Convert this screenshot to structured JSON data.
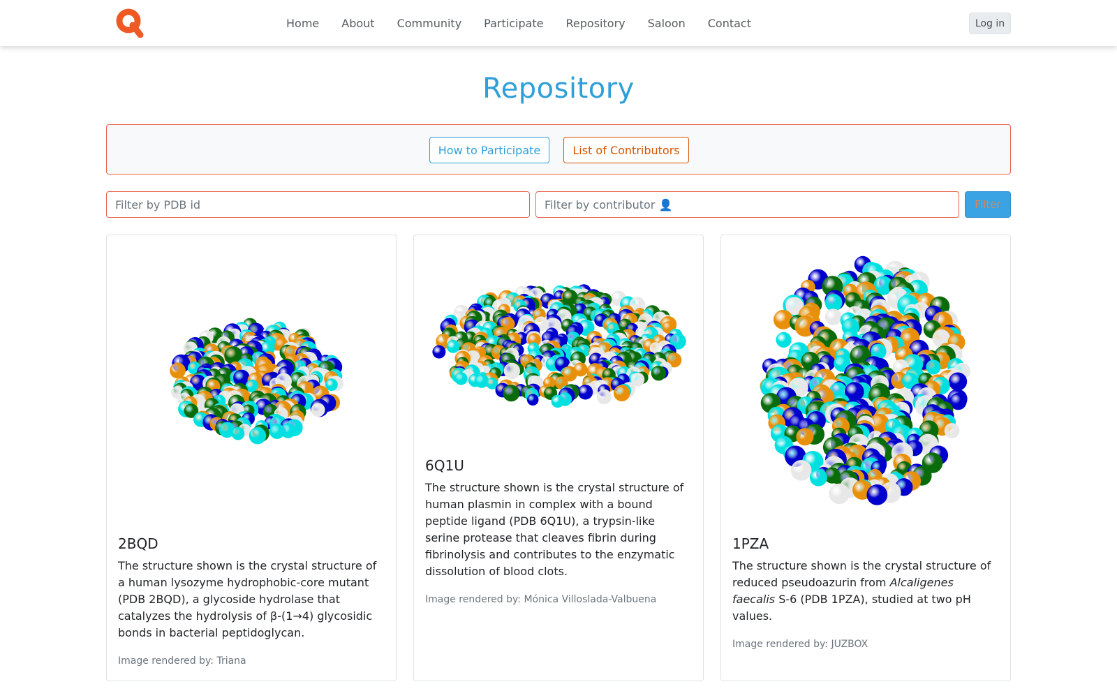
{
  "nav": {
    "logo": "q-logo",
    "links": [
      "Home",
      "About",
      "Community",
      "Participate",
      "Repository",
      "Saloon",
      "Contact"
    ],
    "login_label": "Log in"
  },
  "page": {
    "title": "Repository",
    "how_to_participate": "How to Participate",
    "list_of_contributors": "List of Contributors"
  },
  "filters": {
    "pdb_placeholder": "Filter by PDB id",
    "contributor_placeholder": "Filter by contributor 👤",
    "filter_label": "Filter"
  },
  "colors": {
    "accent_blue": "#2e9fd8",
    "accent_orange": "#d35400",
    "border_red": "#e8624b",
    "atom_blue": "#0000cc",
    "atom_green": "#0a6b0a",
    "atom_orange": "#e8900c",
    "atom_cyan": "#00e0e0",
    "atom_white": "#e8e8e8"
  },
  "cards": [
    {
      "pdb_id": "2BQD",
      "description_plain": "The structure shown is the crystal structure of a human lysozyme hydrophobic-core mutant (PDB 2BQD), a glycoside hydrolase that catalyzes the hydrolysis of β-(1→4) glycosidic bonds in bacterial peptidoglycan.",
      "credit_prefix": "Image rendered by:",
      "credit_name": "Triana",
      "image_alt": "protein-structure-2bqd"
    },
    {
      "pdb_id": "6Q1U",
      "description_plain": "The structure shown is the crystal structure of human plasmin in complex with a bound peptide ligand (PDB 6Q1U), a trypsin-like serine protease that cleaves fibrin during fibrinolysis and contributes to the enzymatic dissolution of blood clots.",
      "credit_prefix": "Image rendered by:",
      "credit_name": "Mónica Villoslada-Valbuena",
      "image_alt": "protein-structure-6q1u"
    },
    {
      "pdb_id": "1PZA",
      "description_before": "The structure shown is the crystal structure of reduced pseudoazurin from",
      "description_italic": "Alcaligenes faecalis",
      "description_after": "S-6 (PDB 1PZA), studied at two pH values.",
      "credit_prefix": "Image rendered by:",
      "credit_name": "JUZBOX",
      "image_alt": "protein-structure-1pza"
    }
  ]
}
